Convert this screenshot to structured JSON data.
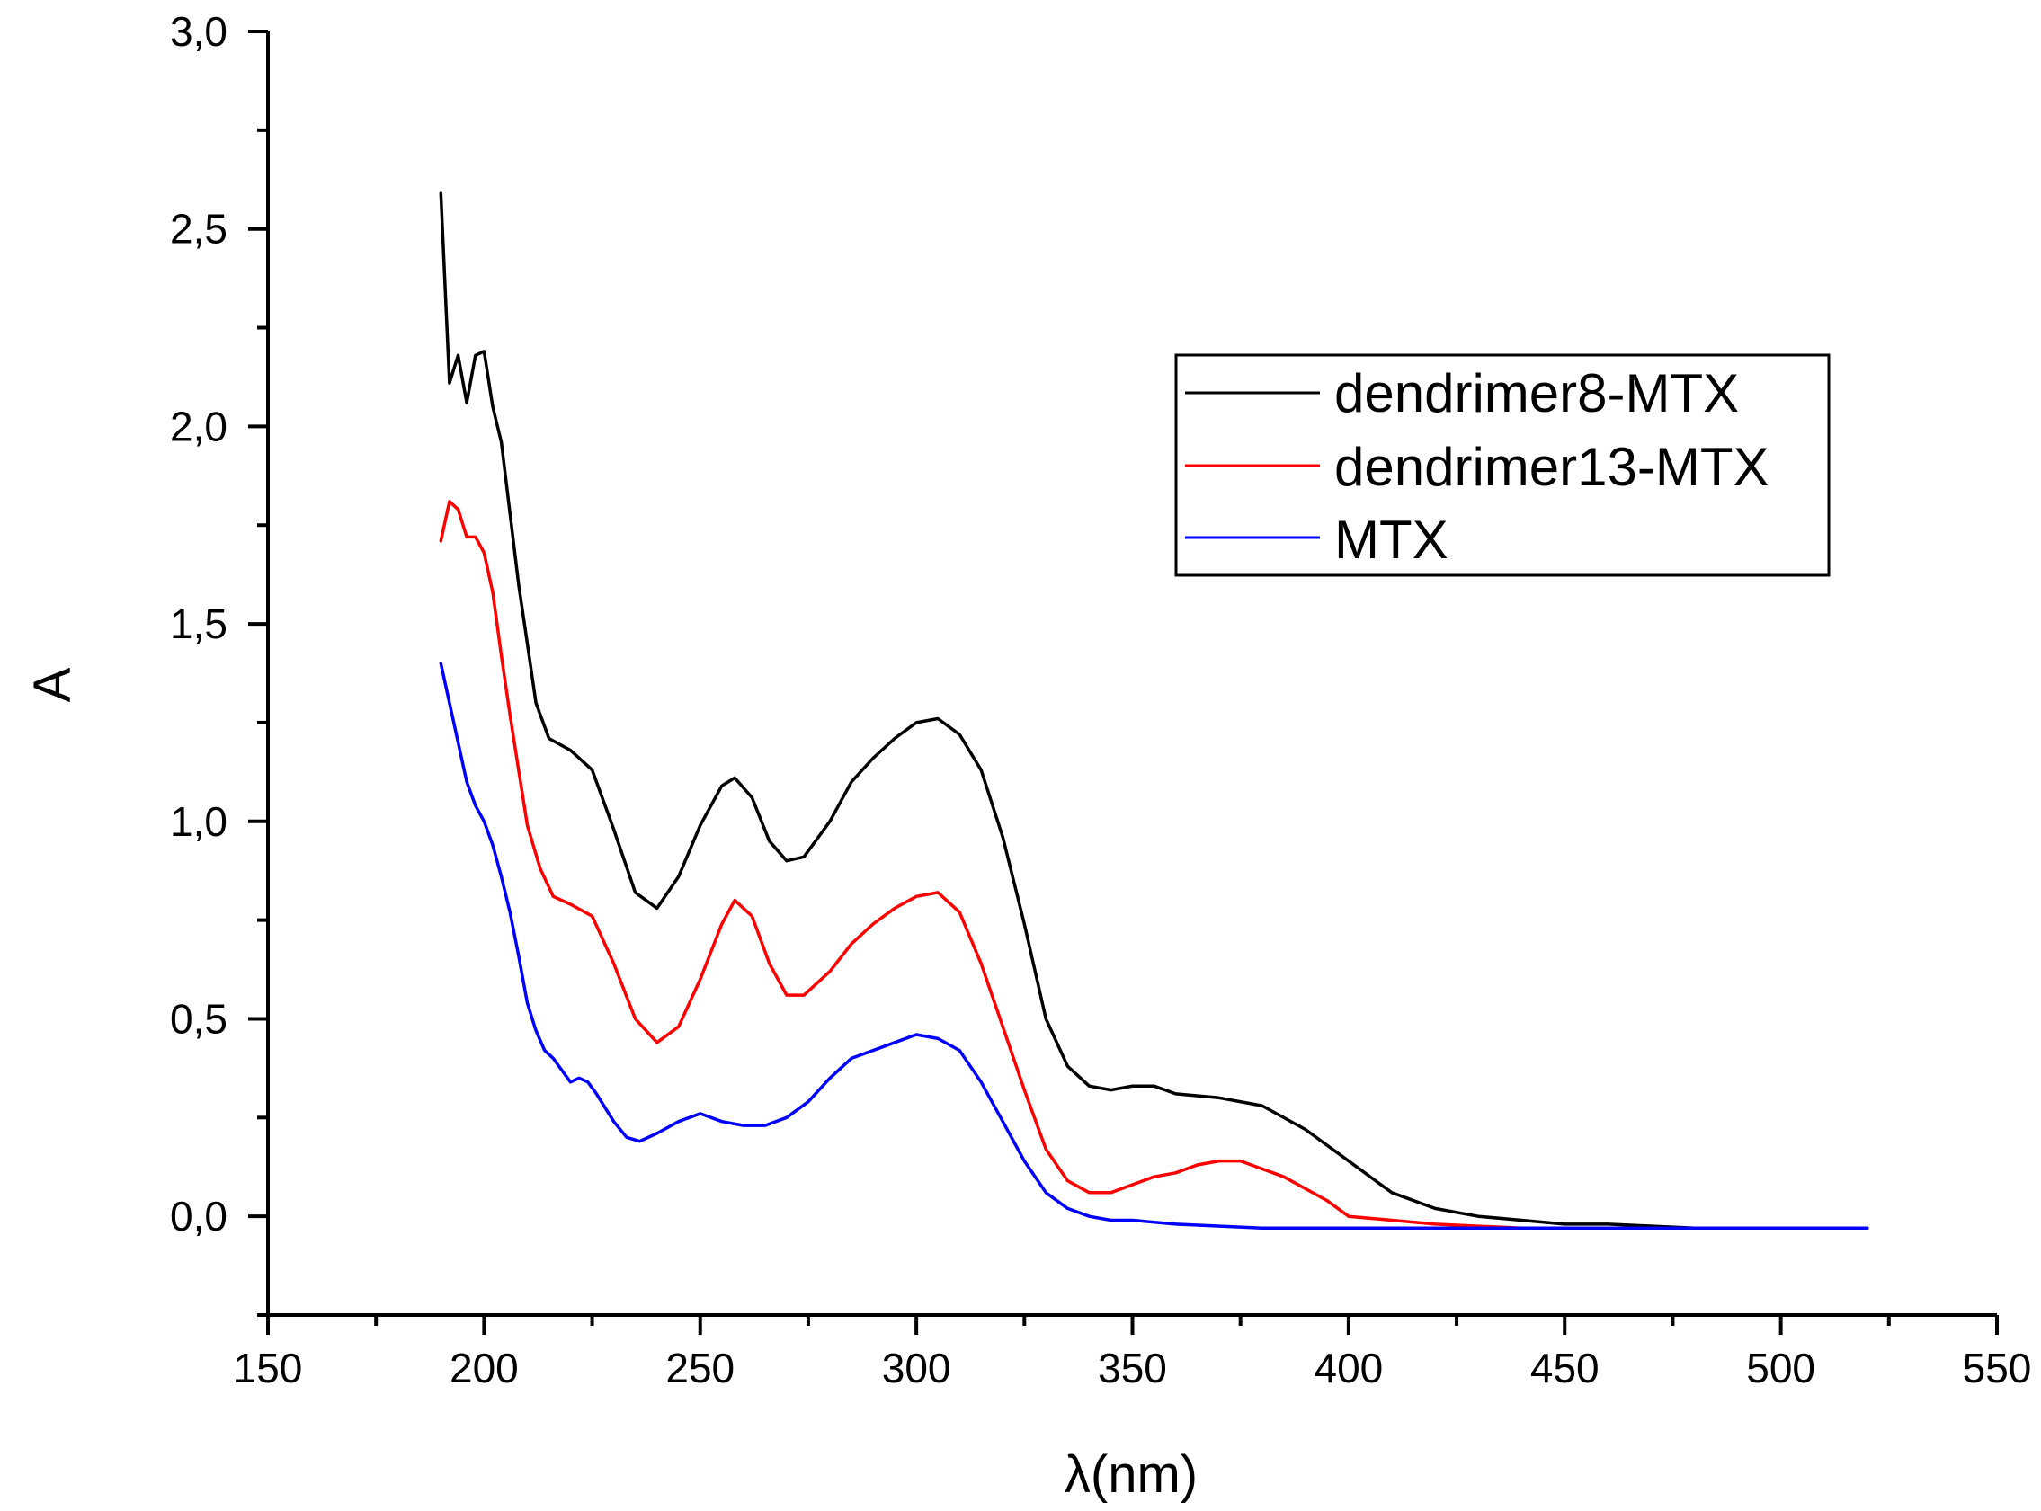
{
  "chart_data": {
    "type": "line",
    "title": "",
    "xlabel": "λ(nm)",
    "ylabel": "A",
    "xlim": [
      150,
      550
    ],
    "ylim": [
      -0.25,
      3.0
    ],
    "x_ticks": [
      150,
      200,
      250,
      300,
      350,
      400,
      450,
      500,
      550
    ],
    "y_ticks": [
      0.0,
      0.5,
      1.0,
      1.5,
      2.0,
      2.5,
      3.0
    ],
    "x_tick_labels": [
      "150",
      "200",
      "250",
      "300",
      "350",
      "400",
      "450",
      "500",
      "550"
    ],
    "y_tick_labels": [
      "0,0",
      "0,5",
      "1,0",
      "1,5",
      "2,0",
      "2,5",
      "3,0"
    ],
    "grid": false,
    "legend_position": "top-right",
    "series": [
      {
        "name": "dendrimer8-MTX",
        "color": "#000000",
        "points": [
          [
            190,
            2.59
          ],
          [
            192,
            2.11
          ],
          [
            194,
            2.18
          ],
          [
            196,
            2.06
          ],
          [
            198,
            2.18
          ],
          [
            200,
            2.19
          ],
          [
            202,
            2.05
          ],
          [
            204,
            1.96
          ],
          [
            206,
            1.78
          ],
          [
            208,
            1.6
          ],
          [
            210,
            1.45
          ],
          [
            212,
            1.3
          ],
          [
            215,
            1.21
          ],
          [
            220,
            1.18
          ],
          [
            225,
            1.13
          ],
          [
            230,
            0.98
          ],
          [
            235,
            0.82
          ],
          [
            240,
            0.78
          ],
          [
            245,
            0.86
          ],
          [
            250,
            0.99
          ],
          [
            255,
            1.09
          ],
          [
            258,
            1.11
          ],
          [
            262,
            1.06
          ],
          [
            266,
            0.95
          ],
          [
            270,
            0.9
          ],
          [
            274,
            0.91
          ],
          [
            280,
            1.0
          ],
          [
            285,
            1.1
          ],
          [
            290,
            1.16
          ],
          [
            295,
            1.21
          ],
          [
            300,
            1.25
          ],
          [
            305,
            1.26
          ],
          [
            310,
            1.22
          ],
          [
            315,
            1.13
          ],
          [
            320,
            0.96
          ],
          [
            325,
            0.74
          ],
          [
            330,
            0.5
          ],
          [
            335,
            0.38
          ],
          [
            340,
            0.33
          ],
          [
            345,
            0.32
          ],
          [
            350,
            0.33
          ],
          [
            355,
            0.33
          ],
          [
            360,
            0.31
          ],
          [
            370,
            0.3
          ],
          [
            380,
            0.28
          ],
          [
            390,
            0.22
          ],
          [
            400,
            0.14
          ],
          [
            410,
            0.06
          ],
          [
            420,
            0.02
          ],
          [
            430,
            0.0
          ],
          [
            440,
            -0.01
          ],
          [
            450,
            -0.02
          ],
          [
            460,
            -0.02
          ],
          [
            480,
            -0.03
          ],
          [
            500,
            -0.03
          ],
          [
            520,
            -0.03
          ]
        ]
      },
      {
        "name": "dendrimer13-MTX",
        "color": "#ff0000",
        "points": [
          [
            190,
            1.71
          ],
          [
            192,
            1.81
          ],
          [
            194,
            1.79
          ],
          [
            196,
            1.72
          ],
          [
            198,
            1.72
          ],
          [
            200,
            1.68
          ],
          [
            202,
            1.58
          ],
          [
            204,
            1.42
          ],
          [
            206,
            1.27
          ],
          [
            208,
            1.13
          ],
          [
            210,
            0.99
          ],
          [
            213,
            0.88
          ],
          [
            216,
            0.81
          ],
          [
            220,
            0.79
          ],
          [
            225,
            0.76
          ],
          [
            230,
            0.64
          ],
          [
            235,
            0.5
          ],
          [
            240,
            0.44
          ],
          [
            245,
            0.48
          ],
          [
            250,
            0.6
          ],
          [
            255,
            0.74
          ],
          [
            258,
            0.8
          ],
          [
            262,
            0.76
          ],
          [
            266,
            0.64
          ],
          [
            270,
            0.56
          ],
          [
            274,
            0.56
          ],
          [
            280,
            0.62
          ],
          [
            285,
            0.69
          ],
          [
            290,
            0.74
          ],
          [
            295,
            0.78
          ],
          [
            300,
            0.81
          ],
          [
            305,
            0.82
          ],
          [
            310,
            0.77
          ],
          [
            315,
            0.64
          ],
          [
            320,
            0.48
          ],
          [
            325,
            0.32
          ],
          [
            330,
            0.17
          ],
          [
            335,
            0.09
          ],
          [
            340,
            0.06
          ],
          [
            345,
            0.06
          ],
          [
            350,
            0.08
          ],
          [
            355,
            0.1
          ],
          [
            360,
            0.11
          ],
          [
            365,
            0.13
          ],
          [
            370,
            0.14
          ],
          [
            375,
            0.14
          ],
          [
            380,
            0.12
          ],
          [
            385,
            0.1
          ],
          [
            390,
            0.07
          ],
          [
            395,
            0.04
          ],
          [
            400,
            0.0
          ],
          [
            410,
            -0.01
          ],
          [
            420,
            -0.02
          ],
          [
            440,
            -0.03
          ],
          [
            460,
            -0.03
          ],
          [
            480,
            -0.03
          ],
          [
            500,
            -0.03
          ],
          [
            520,
            -0.03
          ]
        ]
      },
      {
        "name": "MTX",
        "color": "#0000ff",
        "points": [
          [
            190,
            1.4
          ],
          [
            192,
            1.3
          ],
          [
            194,
            1.2
          ],
          [
            196,
            1.1
          ],
          [
            198,
            1.04
          ],
          [
            200,
            1.0
          ],
          [
            202,
            0.94
          ],
          [
            204,
            0.86
          ],
          [
            206,
            0.77
          ],
          [
            208,
            0.66
          ],
          [
            210,
            0.54
          ],
          [
            212,
            0.47
          ],
          [
            214,
            0.42
          ],
          [
            216,
            0.4
          ],
          [
            218,
            0.37
          ],
          [
            220,
            0.34
          ],
          [
            222,
            0.35
          ],
          [
            224,
            0.34
          ],
          [
            226,
            0.31
          ],
          [
            230,
            0.24
          ],
          [
            233,
            0.2
          ],
          [
            236,
            0.19
          ],
          [
            240,
            0.21
          ],
          [
            245,
            0.24
          ],
          [
            250,
            0.26
          ],
          [
            255,
            0.24
          ],
          [
            260,
            0.23
          ],
          [
            265,
            0.23
          ],
          [
            270,
            0.25
          ],
          [
            275,
            0.29
          ],
          [
            280,
            0.35
          ],
          [
            285,
            0.4
          ],
          [
            290,
            0.42
          ],
          [
            295,
            0.44
          ],
          [
            300,
            0.46
          ],
          [
            305,
            0.45
          ],
          [
            310,
            0.42
          ],
          [
            315,
            0.34
          ],
          [
            320,
            0.24
          ],
          [
            325,
            0.14
          ],
          [
            330,
            0.06
          ],
          [
            335,
            0.02
          ],
          [
            340,
            0.0
          ],
          [
            345,
            -0.01
          ],
          [
            350,
            -0.01
          ],
          [
            360,
            -0.02
          ],
          [
            380,
            -0.03
          ],
          [
            400,
            -0.03
          ],
          [
            450,
            -0.03
          ],
          [
            500,
            -0.03
          ],
          [
            520,
            -0.03
          ]
        ]
      }
    ]
  }
}
